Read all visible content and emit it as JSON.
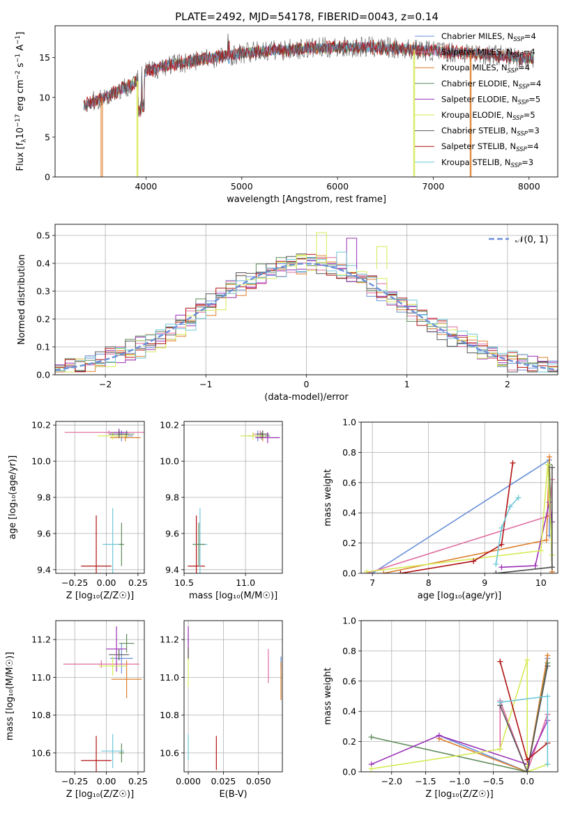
{
  "figure": {
    "title": "PLATE=2492, MJD=54178, FIBERID=0043, z=0.14"
  },
  "models": [
    {
      "name": "Chabrier MILES, N<sub>SSP</sub>=4",
      "label": "Chabrier MILES, N",
      "sub": "SSP",
      "tail": "=4",
      "color": "#6a8fd8"
    },
    {
      "name": "Salpeter MILES",
      "label": "Salpeter MILES, N",
      "sub": "SSP",
      "tail": "=4",
      "color": "#e06c9f"
    },
    {
      "name": "Kroupa MILES",
      "label": "Kroupa MILES, N",
      "sub": "SSP",
      "tail": "=4",
      "color": "#dd7e2b"
    },
    {
      "name": "Chabrier ELODIE",
      "label": "Chabrier ELODIE, N",
      "sub": "SSP",
      "tail": "=4",
      "color": "#5e8a5a"
    },
    {
      "name": "Salpeter ELODIE",
      "label": "Salpeter ELODIE, N",
      "sub": "SSP",
      "tail": "=5",
      "color": "#9a2fb6"
    },
    {
      "name": "Kroupa ELODIE",
      "label": "Kroupa ELODIE, N",
      "sub": "SSP",
      "tail": "=5",
      "color": "#d6ea55"
    },
    {
      "name": "Chabrier STELIB",
      "label": "Chabrier STELIB, N",
      "sub": "SSP",
      "tail": "=3",
      "color": "#555555"
    },
    {
      "name": "Salpeter STELIB",
      "label": "Salpeter STELIB, N",
      "sub": "SSP",
      "tail": "=4",
      "color": "#b01010"
    },
    {
      "name": "Kroupa STELIB",
      "label": "Kroupa STELIB, N",
      "sub": "SSP",
      "tail": "=3",
      "color": "#6cc7d6"
    }
  ],
  "chart_data": [
    {
      "id": "spectrum",
      "type": "line",
      "xlabel": "wavelength [Angstrom, rest frame]",
      "ylabel_main": "Flux [f",
      "ylabel_sub": "λ",
      "ylabel_rest": "10",
      "ylabel_sup": "−17",
      "ylabel_tail": " erg cm",
      "ylabel_sup2": "−2",
      "ylabel_tail2": " s",
      "ylabel_sup3": "−1",
      "ylabel_tail3": " A",
      "ylabel_sup4": "−1",
      "ylabel_end": "]",
      "xlim": [
        3050,
        8300
      ],
      "ylim": [
        0,
        19
      ],
      "xticks": [
        4000,
        5000,
        6000,
        7000,
        8000
      ],
      "yticks": [
        0,
        5,
        10,
        15
      ],
      "continuum": [
        [
          3350,
          9.0
        ],
        [
          3600,
          10.2
        ],
        [
          3900,
          12.0
        ],
        [
          4000,
          13.2
        ],
        [
          4200,
          14.0
        ],
        [
          4500,
          14.6
        ],
        [
          4800,
          15.2
        ],
        [
          5200,
          15.8
        ],
        [
          5600,
          16.1
        ],
        [
          6000,
          16.3
        ],
        [
          6400,
          16.3
        ],
        [
          6800,
          16.0
        ],
        [
          7200,
          15.7
        ],
        [
          7600,
          15.4
        ],
        [
          8050,
          14.8
        ]
      ],
      "drops": [
        [
          3530,
          3545,
          0
        ],
        [
          3905,
          3915,
          0
        ],
        [
          6795,
          6805,
          0
        ],
        [
          7385,
          7395,
          0
        ]
      ],
      "legend_position": "top-right"
    },
    {
      "id": "residuals",
      "type": "bar",
      "xlabel": "(data-model)/error",
      "ylabel": "Normed distribution",
      "xlim": [
        -2.5,
        2.5
      ],
      "ylim": [
        0,
        0.54
      ],
      "xticks": [
        -2,
        -1,
        0,
        1,
        2
      ],
      "yticks": [
        0.0,
        0.1,
        0.2,
        0.3,
        0.4,
        0.5
      ],
      "bin_width": 0.1,
      "gaussian_label": "𝒩(0, 1)",
      "gaussian_color": "#6a8fd8",
      "peak_values": [
        0.51,
        0.49,
        0.46,
        0.44,
        0.43
      ],
      "legend_position": "top-right"
    },
    {
      "id": "age-vs-Z",
      "type": "scatter",
      "xlabel": "Z [log₁₀(Z/Z☉)]",
      "ylabel": "age  [log₁₀(age/yr)]",
      "xlim": [
        -0.4,
        0.3
      ],
      "ylim": [
        9.38,
        10.22
      ],
      "xticks": [
        -0.25,
        0.0,
        0.25
      ],
      "yticks": [
        9.4,
        9.6,
        9.8,
        10.0,
        10.2
      ],
      "points": [
        {
          "x": 0.12,
          "y": 10.14,
          "xerr": 0.09,
          "yerr": 0.03,
          "model": 0
        },
        {
          "x": 0.02,
          "y": 10.16,
          "xerr": 0.35,
          "yerr": 0.01,
          "model": 1
        },
        {
          "x": 0.15,
          "y": 10.13,
          "xerr": 0.12,
          "yerr": 0.02,
          "model": 2
        },
        {
          "x": 0.16,
          "y": 10.15,
          "xerr": 0.06,
          "yerr": 0.02,
          "model": 3
        },
        {
          "x": 0.1,
          "y": 10.16,
          "xerr": 0.07,
          "yerr": 0.02,
          "model": 4
        },
        {
          "x": 0.05,
          "y": 10.14,
          "xerr": 0.12,
          "yerr": 0.02,
          "model": 5
        },
        {
          "x": 0.1,
          "y": 10.15,
          "xerr": 0.08,
          "yerr": 0.02,
          "model": 6
        },
        {
          "x": -0.08,
          "y": 9.42,
          "xerr": 0.12,
          "yerr": 0.28,
          "model": 7
        },
        {
          "x": 0.05,
          "y": 9.54,
          "xerr": 0.08,
          "yerr": 0.2,
          "model": 8
        },
        {
          "x": 0.12,
          "y": 9.54,
          "xerr": 0.02,
          "yerr": 0.12,
          "model": 3
        }
      ]
    },
    {
      "id": "age-vs-mass",
      "type": "scatter",
      "xlabel": "mass [log₁₀(M/M☉)]",
      "ylabel": "",
      "xlim": [
        10.5,
        11.3
      ],
      "ylim": [
        9.38,
        10.22
      ],
      "xticks": [
        10.5,
        11.0
      ],
      "yticks": [
        9.4,
        9.6,
        9.8,
        10.0,
        10.2
      ],
      "points": [
        {
          "x": 11.1,
          "y": 10.14,
          "xerr": 0.08,
          "yerr": 0.03,
          "model": 0
        },
        {
          "x": 11.12,
          "y": 10.15,
          "xerr": 0.06,
          "yerr": 0.02,
          "model": 1
        },
        {
          "x": 11.14,
          "y": 10.13,
          "xerr": 0.05,
          "yerr": 0.02,
          "model": 2
        },
        {
          "x": 11.13,
          "y": 10.14,
          "xerr": 0.07,
          "yerr": 0.02,
          "model": 3
        },
        {
          "x": 11.18,
          "y": 10.13,
          "xerr": 0.1,
          "yerr": 0.03,
          "model": 4
        },
        {
          "x": 11.06,
          "y": 10.14,
          "xerr": 0.1,
          "yerr": 0.02,
          "model": 5
        },
        {
          "x": 11.14,
          "y": 10.15,
          "xerr": 0.05,
          "yerr": 0.02,
          "model": 6
        },
        {
          "x": 10.6,
          "y": 9.42,
          "xerr": 0.07,
          "yerr": 0.28,
          "model": 7
        },
        {
          "x": 10.63,
          "y": 9.54,
          "xerr": 0.06,
          "yerr": 0.2,
          "model": 8
        },
        {
          "x": 10.62,
          "y": 9.54,
          "xerr": 0.05,
          "yerr": 0.12,
          "model": 3
        }
      ]
    },
    {
      "id": "weight-vs-age",
      "type": "line",
      "xlabel": "age  [log₁₀(age/yr)]",
      "ylabel": "mass weight",
      "xlim": [
        6.8,
        10.3
      ],
      "ylim": [
        0,
        1
      ],
      "xticks": [
        7,
        8,
        9,
        10
      ],
      "yticks": [
        0.0,
        0.2,
        0.4,
        0.6,
        0.8,
        1.0
      ],
      "series": [
        {
          "model": 0,
          "x": [
            7.0,
            10.15,
            10.15
          ],
          "y": [
            0.0,
            0.75,
            0.25
          ]
        },
        {
          "model": 1,
          "x": [
            6.9,
            10.15,
            10.2
          ],
          "y": [
            0.0,
            0.38,
            0.62
          ]
        },
        {
          "model": 2,
          "x": [
            7.2,
            10.1,
            10.15,
            10.2
          ],
          "y": [
            0.0,
            0.22,
            0.77,
            0.01
          ]
        },
        {
          "model": 3,
          "x": [
            9.2,
            10.2,
            10.15
          ],
          "y": [
            0.0,
            0.04,
            0.72
          ]
        },
        {
          "model": 4,
          "x": [
            9.3,
            9.9,
            10.15,
            10.2
          ],
          "y": [
            0.04,
            0.05,
            0.47,
            0.34
          ]
        },
        {
          "model": 5,
          "x": [
            6.9,
            10.0,
            10.12,
            10.2
          ],
          "y": [
            0.01,
            0.15,
            0.72,
            0.12
          ]
        },
        {
          "model": 6,
          "x": [
            9.2,
            10.2,
            10.2
          ],
          "y": [
            0.0,
            0.04,
            0.7
          ]
        },
        {
          "model": 7,
          "x": [
            7.5,
            8.8,
            9.3,
            9.5
          ],
          "y": [
            0.0,
            0.08,
            0.19,
            0.73
          ]
        },
        {
          "model": 8,
          "x": [
            9.2,
            9.3,
            9.45,
            9.6
          ],
          "y": [
            0.06,
            0.3,
            0.44,
            0.5
          ]
        }
      ]
    },
    {
      "id": "mass-vs-Z",
      "type": "scatter",
      "xlabel": "Z [log₁₀(Z/Z☉)]",
      "ylabel": "mass [log₁₀(M/M☉)]",
      "xlim": [
        -0.4,
        0.3
      ],
      "ylim": [
        10.5,
        11.3
      ],
      "xticks": [
        -0.25,
        0.0,
        0.25
      ],
      "yticks": [
        10.6,
        10.8,
        11.0,
        11.2
      ],
      "points": [
        {
          "x": 0.12,
          "y": 11.1,
          "xerr": 0.09,
          "yerr": 0.08,
          "model": 0
        },
        {
          "x": -0.04,
          "y": 11.07,
          "xerr": 0.3,
          "yerr": 0.02,
          "model": 1
        },
        {
          "x": 0.16,
          "y": 10.99,
          "xerr": 0.12,
          "yerr": 0.1,
          "model": 2
        },
        {
          "x": 0.16,
          "y": 11.18,
          "xerr": 0.06,
          "yerr": 0.05,
          "model": 3
        },
        {
          "x": 0.08,
          "y": 11.15,
          "xerr": 0.08,
          "yerr": 0.12,
          "model": 4
        },
        {
          "x": 0.05,
          "y": 11.06,
          "xerr": 0.11,
          "yerr": 0.05,
          "model": 5
        },
        {
          "x": 0.1,
          "y": 11.12,
          "xerr": 0.08,
          "yerr": 0.03,
          "model": 6
        },
        {
          "x": -0.08,
          "y": 10.56,
          "xerr": 0.12,
          "yerr": 0.13,
          "model": 7
        },
        {
          "x": 0.05,
          "y": 10.61,
          "xerr": 0.09,
          "yerr": 0.09,
          "model": 8
        },
        {
          "x": 0.12,
          "y": 10.6,
          "xerr": 0.02,
          "yerr": 0.05,
          "model": 3
        }
      ]
    },
    {
      "id": "mass-vs-ebv",
      "type": "scatter",
      "xlabel": "E(B-V)",
      "ylabel": "",
      "xlim": [
        -0.003,
        0.067
      ],
      "ylim": [
        10.5,
        11.3
      ],
      "xticks": [
        0.0,
        0.025,
        0.05
      ],
      "xticklabels": [
        "0.000",
        "0.025",
        "0.050"
      ],
      "yticks": [
        10.6,
        10.8,
        11.0,
        11.2
      ],
      "points": [
        {
          "x": 0.066,
          "y": 11.08,
          "yerr": 0.03,
          "model": 0
        },
        {
          "x": 0.057,
          "y": 11.06,
          "yerr": 0.09,
          "model": 1
        },
        {
          "x": 0.066,
          "y": 10.98,
          "yerr": 0.1,
          "model": 2
        },
        {
          "x": 0.0,
          "y": 11.2,
          "yerr": 0.03,
          "model": 3
        },
        {
          "x": 0.0,
          "y": 11.18,
          "yerr": 0.09,
          "model": 4
        },
        {
          "x": 0.0,
          "y": 11.05,
          "yerr": 0.1,
          "model": 5
        },
        {
          "x": 0.0,
          "y": 11.13,
          "yerr": 0.03,
          "model": 6
        },
        {
          "x": 0.02,
          "y": 10.6,
          "yerr": 0.09,
          "model": 7
        },
        {
          "x": 0.0,
          "y": 10.63,
          "yerr": 0.07,
          "model": 8
        }
      ]
    },
    {
      "id": "weight-vs-Z",
      "type": "line",
      "xlabel": "Z [log₁₀(Z/Z☉)]",
      "ylabel": "mass weight",
      "xlim": [
        -2.45,
        0.45
      ],
      "ylim": [
        0,
        1
      ],
      "xticks": [
        -2.0,
        -1.5,
        -1.0,
        -0.5,
        0.0
      ],
      "yticks": [
        0.0,
        0.2,
        0.4,
        0.6,
        0.8,
        1.0
      ],
      "series": [
        {
          "model": 0,
          "x": [
            -1.3,
            0.0,
            0.3
          ],
          "y": [
            0.24,
            0.0,
            0.75
          ]
        },
        {
          "model": 1,
          "x": [
            -0.4,
            -0.4,
            0.0,
            0.3
          ],
          "y": [
            0.15,
            0.47,
            0.0,
            0.38
          ]
        },
        {
          "model": 2,
          "x": [
            -1.3,
            0.0,
            0.3
          ],
          "y": [
            0.22,
            0.0,
            0.77
          ]
        },
        {
          "model": 3,
          "x": [
            -2.3,
            0.0,
            0.3
          ],
          "y": [
            0.23,
            0.0,
            0.72
          ]
        },
        {
          "model": 4,
          "x": [
            -2.3,
            -1.3,
            0.0,
            0.3
          ],
          "y": [
            0.05,
            0.24,
            0.05,
            0.34
          ]
        },
        {
          "model": 5,
          "x": [
            -2.3,
            -0.4,
            0.0,
            0.0,
            0.3
          ],
          "y": [
            0.02,
            0.15,
            0.74,
            0.0,
            0.05
          ]
        },
        {
          "model": 6,
          "x": [
            -0.4,
            0.0,
            0.3
          ],
          "y": [
            0.44,
            0.0,
            0.7
          ]
        },
        {
          "model": 7,
          "x": [
            -0.4,
            0.0,
            0.3
          ],
          "y": [
            0.73,
            0.08,
            0.19
          ]
        },
        {
          "model": 8,
          "x": [
            -0.4,
            0.3,
            0.3
          ],
          "y": [
            0.46,
            0.5,
            0.05
          ]
        }
      ]
    }
  ]
}
